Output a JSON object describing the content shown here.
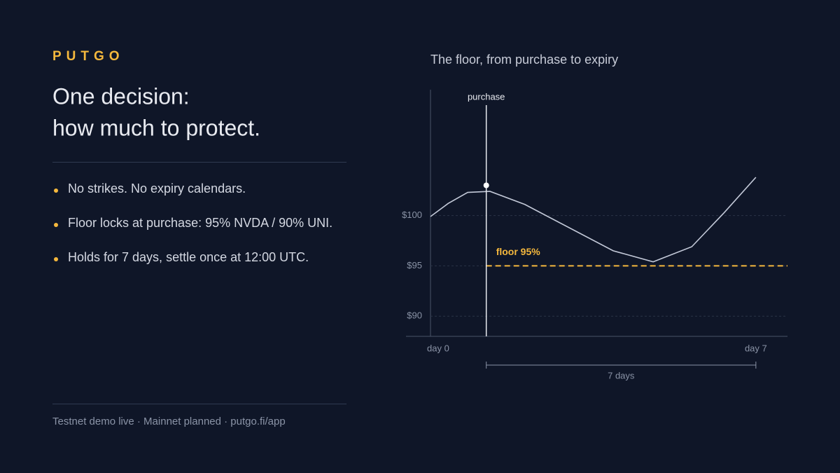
{
  "brand": "PUTGO",
  "headline": [
    "One decision:",
    "how much to protect."
  ],
  "bullets": [
    "No strikes. No expiry calendars.",
    "Floor locks at purchase: 95% NVDA / 90% UNI.",
    "Holds for 7 days, settle once at 12:00 UTC."
  ],
  "footer": "Testnet demo live · Mainnet planned · putgo.fi/app",
  "chart_data": {
    "type": "line",
    "title": "The floor, from purchase to expiry",
    "x": [
      0,
      0.38,
      0.8,
      1.28,
      2.03,
      3.93,
      4.79,
      5.62,
      6.32,
      7
    ],
    "values": [
      99.9,
      101.2,
      102.3,
      102.4,
      101.1,
      96.5,
      95.4,
      96.9,
      100.3,
      103.8
    ],
    "color": "#c3c9d8",
    "xlim": [
      0,
      7.68
    ],
    "xticks": [
      {
        "value": 0,
        "label": "day 0"
      },
      {
        "value": 7,
        "label": "day 7"
      }
    ],
    "ylim": [
      88,
      112.5
    ],
    "yticks": [
      {
        "value": 90,
        "label": "$90"
      },
      {
        "value": 95,
        "label": "$95"
      },
      {
        "value": 100,
        "label": "$100"
      }
    ],
    "grid": true,
    "purchase": {
      "label": "purchase",
      "x": 1.2,
      "y": 103
    },
    "floor": {
      "label": "floor 95%",
      "value": 95,
      "color": "#f5b83d"
    },
    "span": {
      "label": "7 days",
      "x": [
        1.2,
        7
      ]
    }
  }
}
